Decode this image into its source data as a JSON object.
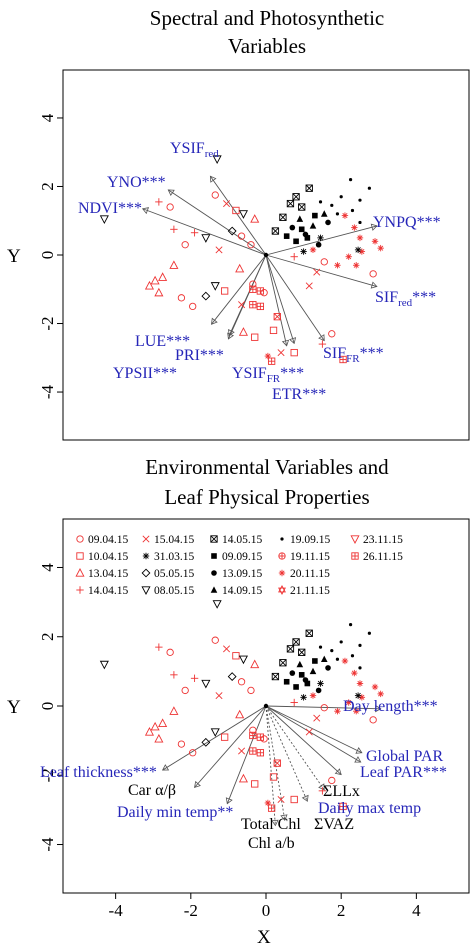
{
  "chart_data": [
    {
      "type": "scatter",
      "subtype": "biplot",
      "title_lines": [
        "Spectral and Photosynthetic",
        "Variables"
      ],
      "xlabel": "",
      "ylabel": "Y",
      "xlim": [
        -5.4,
        5.4
      ],
      "ylim": [
        -5.4,
        5.4
      ],
      "y_ticks": [
        4,
        2,
        0,
        -2,
        -4
      ],
      "vectors": [
        {
          "label": "YSIF",
          "sub": "red",
          "sig": "",
          "x": -1.48,
          "y": 2.3,
          "color": "#2626b8",
          "style": "solid",
          "marker": "triangle"
        },
        {
          "label": "YNO***",
          "sub": "",
          "sig": "",
          "x": -2.6,
          "y": 1.9,
          "color": "#2626b8",
          "style": "solid",
          "marker": "triangle"
        },
        {
          "label": "NDVI***",
          "sub": "",
          "sig": "",
          "x": -3.28,
          "y": 1.35,
          "color": "#2626b8",
          "style": "solid",
          "marker": "triangle"
        },
        {
          "label": "YNPQ***",
          "sub": "",
          "sig": "",
          "x": 2.95,
          "y": 0.85,
          "color": "#2626b8",
          "style": "solid",
          "marker": "triangle"
        },
        {
          "label": "SIF",
          "sub": "red",
          "sig": "***",
          "x": 2.95,
          "y": -0.92,
          "color": "#2626b8",
          "style": "solid",
          "marker": "triangle"
        },
        {
          "label": "LUE***",
          "sub": "",
          "sig": "",
          "x": -1.45,
          "y": -2.02,
          "color": "#2626b8",
          "style": "solid",
          "marker": "triangle"
        },
        {
          "label": "PRI***",
          "sub": "",
          "sig": "",
          "x": -0.98,
          "y": -2.35,
          "color": "#2626b8",
          "style": "solid",
          "marker": "triangle"
        },
        {
          "label": "YPSII***",
          "sub": "",
          "sig": "",
          "x": -1.0,
          "y": -2.45,
          "color": "#2626b8",
          "style": "solid",
          "marker": "triangle"
        },
        {
          "label": "YSIF",
          "sub": "FR",
          "sig": "***",
          "x": 0.55,
          "y": -2.65,
          "color": "#2626b8",
          "style": "solid",
          "marker": "triangle"
        },
        {
          "label": "ETR***",
          "sub": "",
          "sig": "",
          "x": 0.75,
          "y": -2.58,
          "color": "#2626b8",
          "style": "solid",
          "marker": "triangle"
        },
        {
          "label": "SIF",
          "sub": "FR",
          "sig": "***",
          "x": 1.55,
          "y": -2.5,
          "color": "#2626b8",
          "style": "solid",
          "marker": "triangle"
        }
      ],
      "points": [
        {
          "x": -4.3,
          "y": 1.05,
          "s": "tridown",
          "c": "k"
        },
        {
          "x": -2.85,
          "y": 1.55,
          "s": "plus",
          "c": "r"
        },
        {
          "x": -2.55,
          "y": 1.4,
          "s": "circle",
          "c": "r"
        },
        {
          "x": -1.3,
          "y": 2.8,
          "s": "tridown",
          "c": "k"
        },
        {
          "x": -1.35,
          "y": 1.75,
          "s": "circle",
          "c": "r"
        },
        {
          "x": -1.05,
          "y": 1.5,
          "s": "cross",
          "c": "r"
        },
        {
          "x": -0.8,
          "y": 1.3,
          "s": "square",
          "c": "r"
        },
        {
          "x": -0.6,
          "y": 1.2,
          "s": "tridown",
          "c": "k"
        },
        {
          "x": -0.3,
          "y": 1.05,
          "s": "tri",
          "c": "r"
        },
        {
          "x": -0.9,
          "y": 0.7,
          "s": "diamond",
          "c": "k"
        },
        {
          "x": -0.65,
          "y": 0.55,
          "s": "circle",
          "c": "r"
        },
        {
          "x": -0.4,
          "y": 0.3,
          "s": "circle",
          "c": "r"
        },
        {
          "x": -1.25,
          "y": 0.15,
          "s": "cross",
          "c": "r"
        },
        {
          "x": -1.6,
          "y": 0.5,
          "s": "tridown",
          "c": "k"
        },
        {
          "x": -1.9,
          "y": 0.65,
          "s": "plus",
          "c": "r"
        },
        {
          "x": -2.45,
          "y": 0.75,
          "s": "plus",
          "c": "r"
        },
        {
          "x": -2.15,
          "y": 0.3,
          "s": "circle",
          "c": "r"
        },
        {
          "x": -2.45,
          "y": -0.3,
          "s": "tri",
          "c": "r"
        },
        {
          "x": -2.95,
          "y": -0.75,
          "s": "tri",
          "c": "r"
        },
        {
          "x": -3.1,
          "y": -0.9,
          "s": "tri",
          "c": "r"
        },
        {
          "x": -2.75,
          "y": -0.65,
          "s": "tri",
          "c": "r"
        },
        {
          "x": -2.85,
          "y": -1.1,
          "s": "tri",
          "c": "r"
        },
        {
          "x": -2.25,
          "y": -1.25,
          "s": "circle",
          "c": "r"
        },
        {
          "x": -1.95,
          "y": -1.5,
          "s": "circle",
          "c": "r"
        },
        {
          "x": -1.6,
          "y": -1.2,
          "s": "diamond",
          "c": "k"
        },
        {
          "x": -1.35,
          "y": -0.9,
          "s": "tridown",
          "c": "k"
        },
        {
          "x": -1.1,
          "y": -1.05,
          "s": "square",
          "c": "r"
        },
        {
          "x": -0.7,
          "y": -0.4,
          "s": "tri",
          "c": "r"
        },
        {
          "x": -0.65,
          "y": -1.45,
          "s": "cross",
          "c": "r"
        },
        {
          "x": -0.35,
          "y": -0.85,
          "s": "circle",
          "c": "r"
        },
        {
          "x": -0.6,
          "y": -2.25,
          "s": "tri",
          "c": "r"
        },
        {
          "x": -0.3,
          "y": -2.4,
          "s": "square",
          "c": "r"
        },
        {
          "x": -0.05,
          "y": -1.1,
          "s": "circle",
          "c": "r"
        },
        {
          "x": 0.2,
          "y": -2.2,
          "s": "square",
          "c": "r"
        },
        {
          "x": 0.3,
          "y": -1.8,
          "s": "boxcross",
          "c": "r"
        },
        {
          "x": -0.35,
          "y": -1.0,
          "s": "boxplus",
          "c": "r"
        },
        {
          "x": -0.15,
          "y": -1.05,
          "s": "boxplus",
          "c": "r"
        },
        {
          "x": -0.35,
          "y": -1.45,
          "s": "boxplus",
          "c": "r"
        },
        {
          "x": -0.15,
          "y": -1.5,
          "s": "boxplus",
          "c": "r"
        },
        {
          "x": 0.15,
          "y": -3.1,
          "s": "boxplus",
          "c": "r"
        },
        {
          "x": 0.05,
          "y": -2.95,
          "s": "star",
          "c": "r"
        },
        {
          "x": 0.4,
          "y": -2.85,
          "s": "cross",
          "c": "r"
        },
        {
          "x": 0.75,
          "y": -2.85,
          "s": "square",
          "c": "r"
        },
        {
          "x": 1.5,
          "y": -2.6,
          "s": "plus",
          "c": "r"
        },
        {
          "x": 2.05,
          "y": -3.05,
          "s": "boxplus",
          "c": "r"
        },
        {
          "x": 1.75,
          "y": -2.3,
          "s": "circle",
          "c": "r"
        },
        {
          "x": 1.15,
          "y": -0.9,
          "s": "cross",
          "c": "r"
        },
        {
          "x": 1.35,
          "y": -0.5,
          "s": "cross",
          "c": "r"
        },
        {
          "x": 1.55,
          "y": -0.2,
          "s": "circle",
          "c": "r"
        },
        {
          "x": 1.9,
          "y": -0.3,
          "s": "star",
          "c": "r"
        },
        {
          "x": 2.2,
          "y": -0.05,
          "s": "star",
          "c": "r"
        },
        {
          "x": 2.55,
          "y": 0.1,
          "s": "star",
          "c": "r"
        },
        {
          "x": 2.4,
          "y": -0.3,
          "s": "star",
          "c": "r"
        },
        {
          "x": 2.85,
          "y": -0.55,
          "s": "circle",
          "c": "r"
        },
        {
          "x": 2.9,
          "y": 0.4,
          "s": "star",
          "c": "r"
        },
        {
          "x": 3.05,
          "y": 0.2,
          "s": "star",
          "c": "r"
        },
        {
          "x": 2.1,
          "y": 1.15,
          "s": "star",
          "c": "r"
        },
        {
          "x": 2.35,
          "y": 0.8,
          "s": "star",
          "c": "r"
        },
        {
          "x": 2.5,
          "y": 0.5,
          "s": "star",
          "c": "r"
        },
        {
          "x": 1.25,
          "y": 0.15,
          "s": "star",
          "c": "r"
        },
        {
          "x": 0.75,
          "y": -0.05,
          "s": "plus",
          "c": "r"
        },
        {
          "x": 0.25,
          "y": 0.7,
          "s": "boxcross",
          "c": "k"
        },
        {
          "x": 0.45,
          "y": 1.1,
          "s": "boxcross",
          "c": "k"
        },
        {
          "x": 0.65,
          "y": 1.5,
          "s": "boxcross",
          "c": "k"
        },
        {
          "x": 0.8,
          "y": 1.7,
          "s": "boxcross",
          "c": "k"
        },
        {
          "x": 0.95,
          "y": 1.4,
          "s": "boxcross",
          "c": "k"
        },
        {
          "x": 1.15,
          "y": 1.95,
          "s": "boxcross",
          "c": "k"
        },
        {
          "x": 0.55,
          "y": 0.55,
          "s": "fsquare",
          "c": "k"
        },
        {
          "x": 0.8,
          "y": 0.4,
          "s": "fsquare",
          "c": "k"
        },
        {
          "x": 0.95,
          "y": 0.75,
          "s": "fsquare",
          "c": "k"
        },
        {
          "x": 1.1,
          "y": 0.5,
          "s": "fsquare",
          "c": "k"
        },
        {
          "x": 1.3,
          "y": 1.15,
          "s": "fsquare",
          "c": "k"
        },
        {
          "x": 0.9,
          "y": 1.05,
          "s": "ftri",
          "c": "k"
        },
        {
          "x": 1.25,
          "y": 0.85,
          "s": "ftri",
          "c": "k"
        },
        {
          "x": 1.55,
          "y": 1.2,
          "s": "ftri",
          "c": "k"
        },
        {
          "x": 0.7,
          "y": 0.8,
          "s": "fcircle",
          "c": "k"
        },
        {
          "x": 1.05,
          "y": 0.6,
          "s": "fcircle",
          "c": "k"
        },
        {
          "x": 1.4,
          "y": 0.3,
          "s": "fcircle",
          "c": "k"
        },
        {
          "x": 1.65,
          "y": 0.95,
          "s": "fcircle",
          "c": "k"
        },
        {
          "x": 1.45,
          "y": 1.55,
          "s": "dot",
          "c": "k"
        },
        {
          "x": 1.75,
          "y": 1.45,
          "s": "dot",
          "c": "k"
        },
        {
          "x": 1.9,
          "y": 1.2,
          "s": "dot",
          "c": "k"
        },
        {
          "x": 2.0,
          "y": 1.7,
          "s": "dot",
          "c": "k"
        },
        {
          "x": 2.3,
          "y": 1.3,
          "s": "dot",
          "c": "k"
        },
        {
          "x": 2.5,
          "y": 1.6,
          "s": "dot",
          "c": "k"
        },
        {
          "x": 2.75,
          "y": 1.95,
          "s": "dot",
          "c": "k"
        },
        {
          "x": 2.25,
          "y": 2.2,
          "s": "dot",
          "c": "k"
        },
        {
          "x": 2.5,
          "y": 0.95,
          "s": "dot",
          "c": "k"
        },
        {
          "x": 1.45,
          "y": 0.5,
          "s": "asterisk",
          "c": "k"
        },
        {
          "x": 1.0,
          "y": 0.1,
          "s": "asterisk",
          "c": "k"
        },
        {
          "x": 2.45,
          "y": 0.15,
          "s": "asterisk",
          "c": "k"
        }
      ]
    },
    {
      "type": "scatter",
      "subtype": "biplot",
      "title_lines": [
        "Environmental Variables and",
        "Leaf Physical Properties"
      ],
      "xlabel": "X",
      "ylabel": "Y",
      "xlim": [
        -5.4,
        5.4
      ],
      "ylim": [
        -5.4,
        5.4
      ],
      "x_ticks": [
        -4,
        -2,
        0,
        2,
        4
      ],
      "y_ticks": [
        4,
        2,
        0,
        -2,
        -4
      ],
      "legend": {
        "placement": "top",
        "columns": [
          [
            {
              "label": "09.04.15",
              "s": "circle",
              "c": "r"
            },
            {
              "label": "10.04.15",
              "s": "square",
              "c": "r"
            },
            {
              "label": "13.04.15",
              "s": "tri",
              "c": "r"
            },
            {
              "label": "14.04.15",
              "s": "plus",
              "c": "r"
            }
          ],
          [
            {
              "label": "15.04.15",
              "s": "cross",
              "c": "r"
            },
            {
              "label": "31.03.15",
              "s": "asterisk",
              "c": "k"
            },
            {
              "label": "05.05.15",
              "s": "diamond",
              "c": "k"
            },
            {
              "label": "08.05.15",
              "s": "tridown",
              "c": "k"
            }
          ],
          [
            {
              "label": "14.05.15",
              "s": "boxcross",
              "c": "k"
            },
            {
              "label": "09.09.15",
              "s": "fsquare",
              "c": "k"
            },
            {
              "label": "13.09.15",
              "s": "fcircle",
              "c": "k"
            },
            {
              "label": "14.09.15",
              "s": "ftri",
              "c": "k"
            }
          ],
          [
            {
              "label": "19.09.15",
              "s": "dot",
              "c": "k"
            },
            {
              "label": "19.11.15",
              "s": "circplus",
              "c": "r"
            },
            {
              "label": "20.11.15",
              "s": "star",
              "c": "r"
            },
            {
              "label": "21.11.15",
              "s": "david",
              "c": "r"
            }
          ],
          [
            {
              "label": "23.11.15",
              "s": "tridown",
              "c": "r"
            },
            {
              "label": "26.11.15",
              "s": "boxplus",
              "c": "r"
            }
          ]
        ]
      },
      "vectors": [
        {
          "label": "Day length***",
          "x": 3.05,
          "y": -0.08,
          "color": "#2626b8",
          "style": "solid",
          "marker": "triangle"
        },
        {
          "label": "Global PAR",
          "x": 2.55,
          "y": -1.35,
          "color": "#2626b8",
          "style": "solid",
          "marker": "triangle"
        },
        {
          "label": "Leaf PAR***",
          "x": 2.52,
          "y": -1.62,
          "color": "#2626b8",
          "style": "solid",
          "marker": "triangle"
        },
        {
          "label": "ΣLLx",
          "x": 2.0,
          "y": -1.98,
          "color": "#000000",
          "style": "solid",
          "marker": "triangle"
        },
        {
          "label": "Daily max temp",
          "x": 1.55,
          "y": -2.42,
          "color": "#2626b8",
          "style": "dotted",
          "marker": "triangle"
        },
        {
          "label": "ΣVAZ",
          "x": 1.1,
          "y": -2.75,
          "color": "#000000",
          "style": "dotted",
          "marker": "triangle"
        },
        {
          "label": "Total Chl",
          "x": 0.5,
          "y": -3.3,
          "color": "#000000",
          "style": "dotted",
          "marker": "triangle"
        },
        {
          "label": "Chl a/b",
          "x": 0.25,
          "y": -3.45,
          "color": "#000000",
          "style": "dotted",
          "marker": "triangle"
        },
        {
          "label": "Daily min temp**",
          "x": -1.03,
          "y": -2.82,
          "color": "#2626b8",
          "style": "solid",
          "marker": "triangle"
        },
        {
          "label": "Car α/β",
          "x": -1.9,
          "y": -2.35,
          "color": "#000000",
          "style": "solid",
          "marker": "triangle"
        },
        {
          "label": "Leaf thickness***",
          "x": -2.75,
          "y": -1.85,
          "color": "#2626b8",
          "style": "solid",
          "marker": "triangle"
        }
      ],
      "points_same_as_panel": 1
    }
  ]
}
